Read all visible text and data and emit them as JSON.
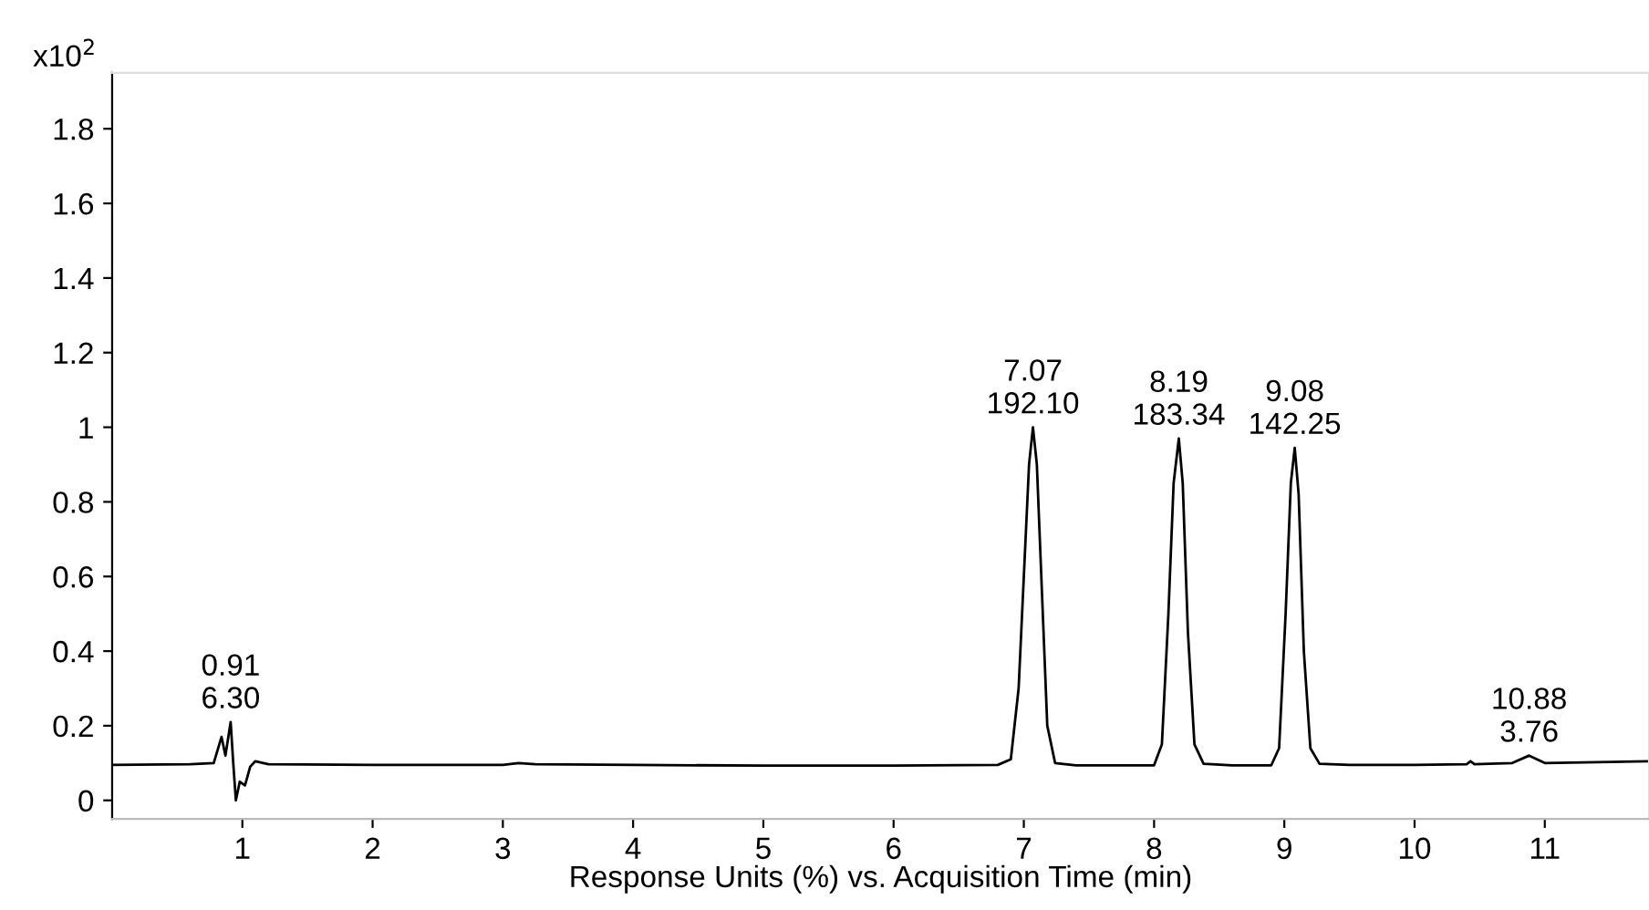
{
  "chart_data": {
    "type": "line",
    "ylabel": "x10$^{2}$",
    "xlabel": "Response Units (%) vs. Acquisition Time (min)",
    "xlim": [
      0,
      11.8
    ],
    "ylim": [
      -0.05,
      1.95
    ],
    "xticks": [
      1,
      2,
      3,
      4,
      5,
      6,
      7,
      8,
      9,
      10,
      11
    ],
    "yticks": [
      0,
      0.2,
      0.4,
      0.6,
      0.8,
      1,
      1.2,
      1.4,
      1.6,
      1.8
    ],
    "grid": false,
    "marker": "none",
    "line_style": "solid",
    "series": [
      {
        "color": "#000000",
        "x": [
          0,
          0.6,
          0.78,
          0.84,
          0.87,
          0.91,
          0.93,
          0.95,
          0.98,
          1.02,
          1.06,
          1.1,
          1.2,
          2.0,
          3.0,
          3.12,
          3.25,
          4.0,
          5.0,
          6.0,
          6.8,
          6.9,
          6.96,
          7.0,
          7.04,
          7.07,
          7.1,
          7.14,
          7.18,
          7.24,
          7.4,
          8.0,
          8.06,
          8.11,
          8.15,
          8.19,
          8.22,
          8.26,
          8.31,
          8.38,
          8.6,
          8.9,
          8.96,
          9.01,
          9.05,
          9.08,
          9.11,
          9.15,
          9.2,
          9.27,
          9.5,
          10.0,
          10.4,
          10.43,
          10.46,
          10.75,
          10.88,
          11.0,
          11.8
        ],
        "values": [
          0.095,
          0.097,
          0.1,
          0.17,
          0.12,
          0.21,
          0.1,
          0.0,
          0.05,
          0.04,
          0.09,
          0.105,
          0.097,
          0.095,
          0.095,
          0.1,
          0.097,
          0.095,
          0.093,
          0.093,
          0.095,
          0.11,
          0.3,
          0.6,
          0.9,
          1.0,
          0.9,
          0.55,
          0.2,
          0.1,
          0.094,
          0.094,
          0.15,
          0.5,
          0.85,
          0.97,
          0.85,
          0.45,
          0.15,
          0.098,
          0.094,
          0.094,
          0.14,
          0.5,
          0.85,
          0.945,
          0.82,
          0.4,
          0.14,
          0.098,
          0.095,
          0.095,
          0.097,
          0.105,
          0.097,
          0.1,
          0.12,
          0.1,
          0.105
        ]
      }
    ],
    "annotations": [
      {
        "text": "0.91\n6.30",
        "x": 0.91,
        "y": 0.21
      },
      {
        "text": "7.07\n192.10",
        "x": 7.07,
        "y": 1.0
      },
      {
        "text": "8.19\n183.34",
        "x": 8.19,
        "y": 0.97
      },
      {
        "text": "9.08\n142.25",
        "x": 9.08,
        "y": 0.945
      },
      {
        "text": "10.88\n3.76",
        "x": 10.88,
        "y": 0.12
      }
    ]
  }
}
